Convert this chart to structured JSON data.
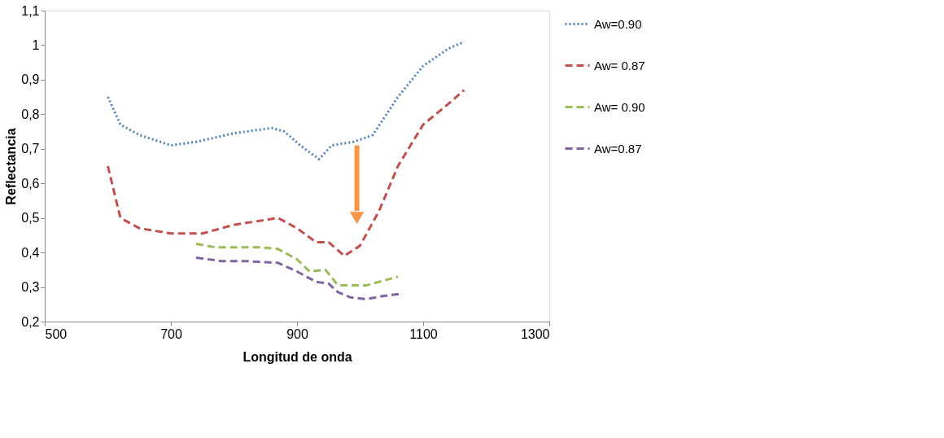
{
  "chart_data": {
    "type": "line",
    "xlabel": "Longitud de onda",
    "ylabel": "Reflectancia",
    "xlim": [
      500,
      1300
    ],
    "xticks": [
      500,
      700,
      900,
      1100,
      1300
    ],
    "ylim": [
      0.2,
      1.1
    ],
    "yticks": [
      {
        "value": 0.2,
        "label": "0,2"
      },
      {
        "value": 0.3,
        "label": "0,3"
      },
      {
        "value": 0.4,
        "label": "0,4"
      },
      {
        "value": 0.5,
        "label": "0,5"
      },
      {
        "value": 0.6,
        "label": "0,6"
      },
      {
        "value": 0.7,
        "label": "0,7"
      },
      {
        "value": 0.8,
        "label": "0,8"
      },
      {
        "value": 0.9,
        "label": "0,9"
      },
      {
        "value": 1,
        "label": "1"
      },
      {
        "value": 1.1,
        "label": "1,1"
      }
    ],
    "grid": false,
    "legend": "right",
    "marker": "none",
    "series": [
      {
        "name": "Aw=0.90",
        "color": "#4f81bd",
        "line_style": "dotted",
        "x": [
          600,
          620,
          650,
          700,
          740,
          800,
          860,
          880,
          905,
          935,
          955,
          990,
          1020,
          1060,
          1100,
          1140,
          1165
        ],
        "values": [
          0.85,
          0.77,
          0.74,
          0.71,
          0.72,
          0.745,
          0.76,
          0.75,
          0.71,
          0.67,
          0.71,
          0.72,
          0.74,
          0.85,
          0.94,
          0.99,
          1.01
        ]
      },
      {
        "name": "Aw= 0.87",
        "color": "#c0504d",
        "line_style": "dashed",
        "x": [
          600,
          620,
          650,
          700,
          750,
          800,
          870,
          900,
          930,
          950,
          975,
          1000,
          1030,
          1060,
          1100,
          1140,
          1165
        ],
        "values": [
          0.65,
          0.5,
          0.47,
          0.455,
          0.455,
          0.48,
          0.5,
          0.47,
          0.43,
          0.43,
          0.39,
          0.42,
          0.52,
          0.65,
          0.77,
          0.83,
          0.87
        ]
      },
      {
        "name": "Aw= 0.90",
        "color": "#9bbb59",
        "line_style": "dashed",
        "x": [
          740,
          770,
          810,
          840,
          870,
          900,
          920,
          945,
          965,
          1010,
          1060
        ],
        "values": [
          0.425,
          0.415,
          0.415,
          0.415,
          0.41,
          0.38,
          0.345,
          0.35,
          0.305,
          0.305,
          0.33
        ]
      },
      {
        "name": "Aw=0.87",
        "color": "#8064a2",
        "line_style": "dashed",
        "x": [
          740,
          780,
          820,
          870,
          900,
          930,
          950,
          965,
          985,
          1010,
          1040,
          1065
        ],
        "values": [
          0.385,
          0.375,
          0.375,
          0.37,
          0.345,
          0.315,
          0.31,
          0.285,
          0.27,
          0.265,
          0.275,
          0.28
        ]
      }
    ]
  }
}
